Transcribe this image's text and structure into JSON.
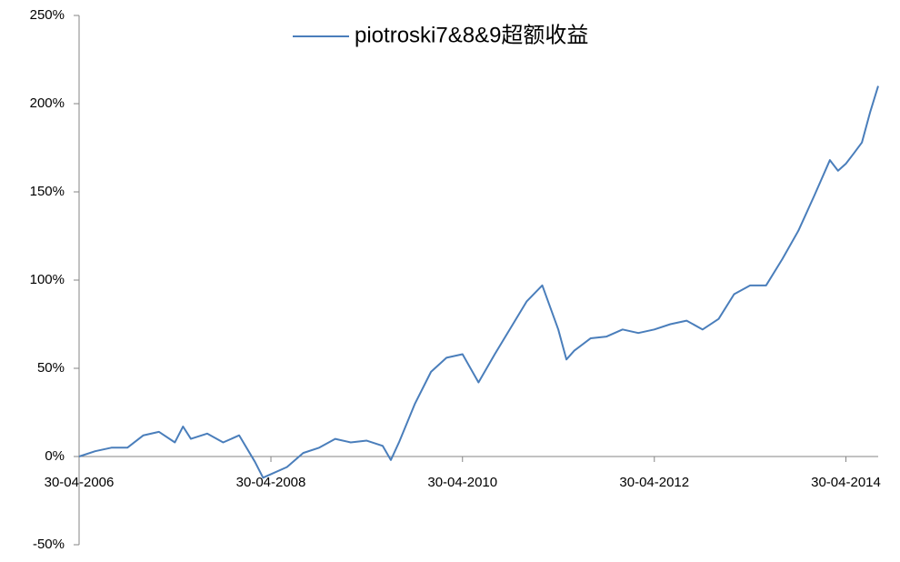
{
  "chart_data": {
    "type": "line",
    "x": [
      "2006-04-30",
      "2006-06-30",
      "2006-08-31",
      "2006-10-31",
      "2006-12-31",
      "2007-02-28",
      "2007-04-30",
      "2007-05-31",
      "2007-06-30",
      "2007-08-31",
      "2007-10-31",
      "2007-12-31",
      "2008-02-29",
      "2008-03-31",
      "2008-04-30",
      "2008-06-30",
      "2008-08-31",
      "2008-10-31",
      "2008-12-31",
      "2009-02-28",
      "2009-04-30",
      "2009-06-30",
      "2009-07-31",
      "2009-08-31",
      "2009-10-31",
      "2009-12-31",
      "2010-02-28",
      "2010-04-30",
      "2010-06-30",
      "2010-08-31",
      "2010-10-31",
      "2010-12-31",
      "2011-02-28",
      "2011-04-30",
      "2011-05-31",
      "2011-06-30",
      "2011-08-31",
      "2011-10-31",
      "2011-12-31",
      "2012-02-29",
      "2012-04-30",
      "2012-06-30",
      "2012-08-31",
      "2012-10-31",
      "2012-12-31",
      "2013-02-28",
      "2013-04-30",
      "2013-06-30",
      "2013-08-31",
      "2013-10-31",
      "2013-12-31",
      "2014-02-28",
      "2014-03-31",
      "2014-04-30",
      "2014-05-31",
      "2014-06-30",
      "2014-07-31",
      "2014-08-31"
    ],
    "series": [
      {
        "name": "piotroski7&8&9超额收益",
        "color": "#4a7ebb",
        "values": [
          0,
          3,
          5,
          5,
          12,
          14,
          8,
          17,
          10,
          13,
          8,
          12,
          -3,
          -12,
          -10,
          -6,
          2,
          5,
          10,
          8,
          9,
          6,
          -2,
          8,
          30,
          48,
          56,
          58,
          42,
          58,
          73,
          88,
          97,
          72,
          55,
          60,
          67,
          68,
          72,
          70,
          72,
          75,
          77,
          72,
          78,
          92,
          97,
          97,
          112,
          128,
          148,
          168,
          162,
          166,
          172,
          178,
          195,
          210
        ]
      }
    ],
    "xlim": [
      "2006-04-30",
      "2014-08-31"
    ],
    "xticks": [
      {
        "value": "2006-04-30",
        "label": "30-04-2006"
      },
      {
        "value": "2008-04-30",
        "label": "30-04-2008"
      },
      {
        "value": "2010-04-30",
        "label": "30-04-2010"
      },
      {
        "value": "2012-04-30",
        "label": "30-04-2012"
      },
      {
        "value": "2014-04-30",
        "label": "30-04-2014"
      }
    ],
    "ylim": [
      -50,
      250
    ],
    "yticks": [
      {
        "value": -50,
        "label": "-50%"
      },
      {
        "value": 0,
        "label": "0%"
      },
      {
        "value": 50,
        "label": "50%"
      },
      {
        "value": 100,
        "label": "100%"
      },
      {
        "value": 150,
        "label": "150%"
      },
      {
        "value": 200,
        "label": "200%"
      },
      {
        "value": 250,
        "label": "250%"
      }
    ],
    "legend": "top"
  }
}
